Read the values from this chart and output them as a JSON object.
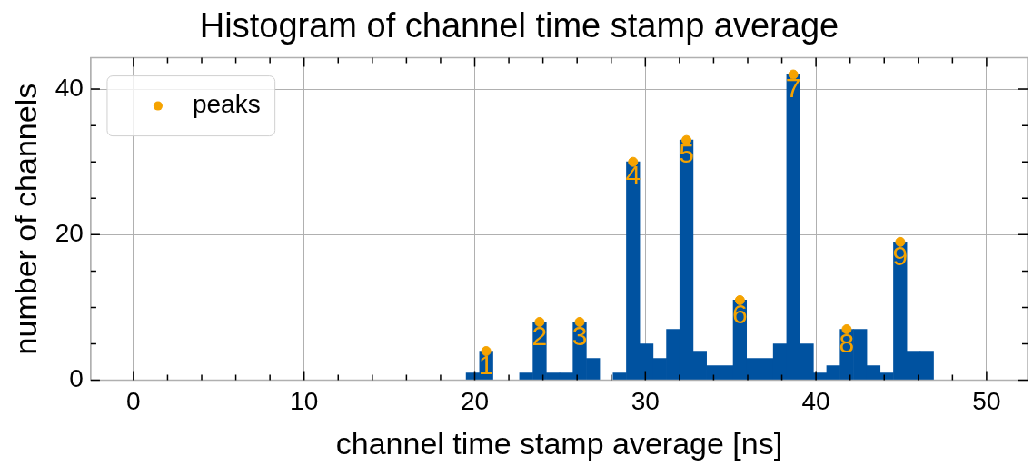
{
  "chart_data": {
    "type": "histogram",
    "title": "Histogram of channel time stamp average",
    "xlabel": "channel time stamp average [ns]",
    "ylabel": "number of channels",
    "bins": [
      19.5,
      20.28,
      21.07,
      21.85,
      22.63,
      23.41,
      24.2,
      24.98,
      25.76,
      26.54,
      27.33,
      28.11,
      28.89,
      29.67,
      30.46,
      31.24,
      32.02,
      32.8,
      33.59,
      34.37,
      35.15,
      35.93,
      36.72,
      37.5,
      38.28,
      39.07,
      39.85,
      40.63,
      41.41,
      42.2,
      42.98,
      43.76,
      44.54,
      45.33,
      46.11,
      46.89
    ],
    "values": [
      1,
      4,
      0,
      0,
      1,
      8,
      1,
      1,
      8,
      3,
      0,
      1,
      30,
      5,
      3,
      7,
      33,
      4,
      2,
      2,
      11,
      3,
      3,
      5,
      42,
      5,
      1,
      2,
      7,
      7,
      2,
      1,
      19,
      4,
      4
    ],
    "color": "#0052a0",
    "series": [
      {
        "type": "scatter",
        "name": "peaks",
        "color": "#f5a300",
        "x": [
          20.67,
          23.8,
          26.15,
          29.28,
          32.41,
          35.54,
          38.67,
          41.8,
          44.94
        ],
        "values": [
          4,
          8,
          8,
          30,
          33,
          11,
          42,
          7,
          19
        ]
      }
    ],
    "annotations": [
      {
        "text": "1",
        "x": 20.67,
        "y": 4
      },
      {
        "text": "2",
        "x": 23.8,
        "y": 8
      },
      {
        "text": "3",
        "x": 26.15,
        "y": 8
      },
      {
        "text": "4",
        "x": 29.28,
        "y": 30
      },
      {
        "text": "5",
        "x": 32.41,
        "y": 33
      },
      {
        "text": "6",
        "x": 35.54,
        "y": 11
      },
      {
        "text": "7",
        "x": 38.67,
        "y": 42
      },
      {
        "text": "8",
        "x": 41.8,
        "y": 7
      },
      {
        "text": "9",
        "x": 44.94,
        "y": 19
      }
    ],
    "xlim": [
      -2.5,
      52.4
    ],
    "ylim": [
      0,
      44.3
    ],
    "xticks": [
      0,
      {
        "value": 2,
        "label": null
      },
      {
        "value": 4,
        "label": null
      },
      {
        "value": 6,
        "label": null
      },
      {
        "value": 8,
        "label": null
      },
      10,
      {
        "value": 12,
        "label": null
      },
      {
        "value": 14,
        "label": null
      },
      {
        "value": 16,
        "label": null
      },
      {
        "value": 18,
        "label": null
      },
      20,
      {
        "value": 22,
        "label": null
      },
      {
        "value": 24,
        "label": null
      },
      {
        "value": 26,
        "label": null
      },
      {
        "value": 28,
        "label": null
      },
      30,
      {
        "value": 32,
        "label": null
      },
      {
        "value": 34,
        "label": null
      },
      {
        "value": 36,
        "label": null
      },
      {
        "value": 38,
        "label": null
      },
      40,
      {
        "value": 42,
        "label": null
      },
      {
        "value": 44,
        "label": null
      },
      {
        "value": 46,
        "label": null
      },
      {
        "value": 48,
        "label": null
      },
      50
    ],
    "yticks": [
      0,
      {
        "value": 5,
        "label": null
      },
      {
        "value": 10,
        "label": null
      },
      {
        "value": 15,
        "label": null
      },
      20,
      {
        "value": 25,
        "label": null
      },
      {
        "value": 30,
        "label": null
      },
      {
        "value": 35,
        "label": null
      },
      40
    ],
    "grid": true,
    "legend": "top left",
    "marker": "circle"
  }
}
